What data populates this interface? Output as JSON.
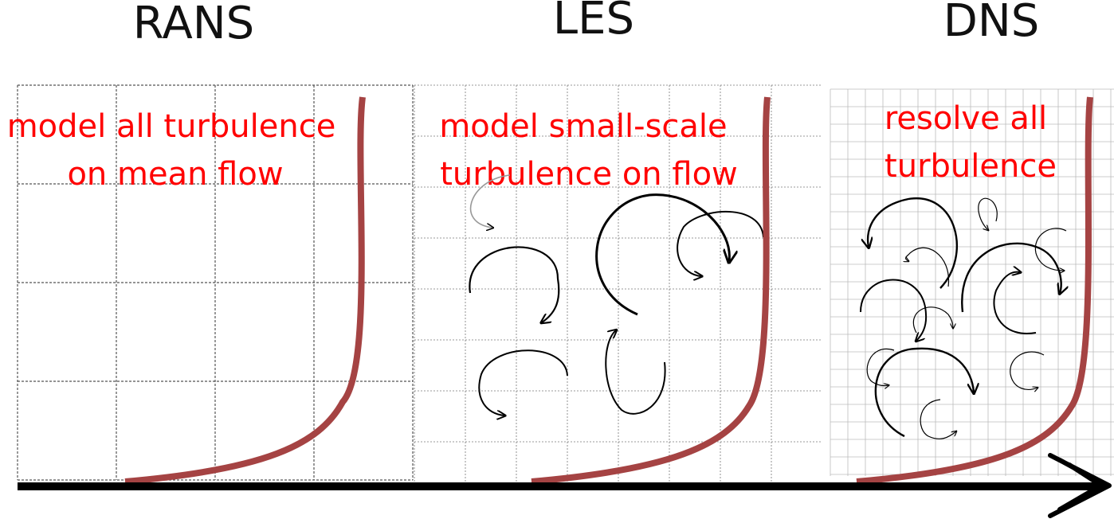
{
  "colors": {
    "background": "#ffffff",
    "profile": "#a54343",
    "description_text": "#ff0000",
    "title_text": "#111111",
    "grid_line": "#555555",
    "axis": "#000000"
  },
  "panels": [
    {
      "title": "RANS",
      "description_lines": [
        "model all turbulence",
        "on mean flow"
      ]
    },
    {
      "title": "LES",
      "description_lines": [
        "model small-scale",
        "turbulence on flow"
      ]
    },
    {
      "title": "DNS",
      "description_lines": [
        "resolve all",
        "turbulence"
      ]
    }
  ]
}
